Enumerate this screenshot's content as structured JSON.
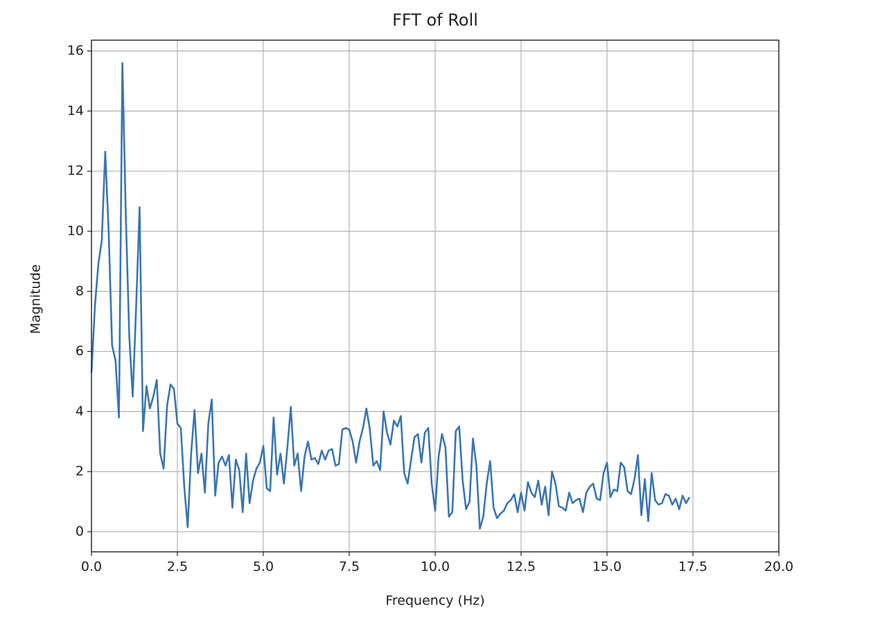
{
  "chart_data": {
    "type": "line",
    "title": "FFT of Roll",
    "xlabel": "Frequency (Hz)",
    "ylabel": "Magnitude",
    "x": [
      0,
      0.1,
      0.2,
      0.3,
      0.4,
      0.5,
      0.6,
      0.7,
      0.8,
      0.9,
      1.0,
      1.1,
      1.2,
      1.3,
      1.4,
      1.5,
      1.6,
      1.7,
      1.8,
      1.9,
      2.0,
      2.1,
      2.2,
      2.3,
      2.4,
      2.5,
      2.6,
      2.7,
      2.8,
      2.9,
      3.0,
      3.1,
      3.2,
      3.3,
      3.4,
      3.5,
      3.6,
      3.7,
      3.8,
      3.9,
      4.0,
      4.1,
      4.2,
      4.3,
      4.4,
      4.5,
      4.6,
      4.7,
      4.8,
      4.9,
      5.0,
      5.1,
      5.2,
      5.3,
      5.4,
      5.5,
      5.6,
      5.7,
      5.8,
      5.9,
      6.0,
      6.1,
      6.2,
      6.3,
      6.4,
      6.5,
      6.6,
      6.7,
      6.8,
      6.9,
      7.0,
      7.1,
      7.2,
      7.3,
      7.4,
      7.5,
      7.6,
      7.7,
      7.8,
      7.9,
      8.0,
      8.1,
      8.2,
      8.3,
      8.4,
      8.5,
      8.6,
      8.7,
      8.8,
      8.9,
      9.0,
      9.1,
      9.2,
      9.3,
      9.4,
      9.5,
      9.6,
      9.7,
      9.8,
      9.9,
      10.0,
      10.1,
      10.2,
      10.3,
      10.4,
      10.5,
      10.6,
      10.7,
      10.8,
      10.9,
      11.0,
      11.1,
      11.2,
      11.3,
      11.4,
      11.5,
      11.6,
      11.7,
      11.8,
      11.9,
      12.0,
      12.1,
      12.2,
      12.3,
      12.4,
      12.5,
      12.6,
      12.7,
      12.8,
      12.9,
      13.0,
      13.1,
      13.2,
      13.3,
      13.4,
      13.5,
      13.6,
      13.7,
      13.8,
      13.9,
      14.0,
      14.1,
      14.2,
      14.3,
      14.4,
      14.5,
      14.6,
      14.7,
      14.8,
      14.9,
      15.0,
      15.1,
      15.2,
      15.3,
      15.4,
      15.5,
      15.6,
      15.7,
      15.8,
      15.9,
      16.0,
      16.1,
      16.2,
      16.3,
      16.4,
      16.5,
      16.6,
      16.7,
      16.8,
      16.9,
      17.0,
      17.1,
      17.2,
      17.3,
      17.4
    ],
    "series": [
      {
        "color": "#3a75b0",
        "values": [
          5.3,
          7.5,
          8.9,
          9.7,
          12.65,
          10.0,
          6.2,
          5.7,
          3.8,
          15.6,
          10.5,
          6.5,
          4.5,
          7.5,
          10.8,
          3.35,
          4.85,
          4.1,
          4.5,
          5.05,
          2.6,
          2.1,
          4.2,
          4.9,
          4.75,
          3.6,
          3.45,
          1.5,
          0.15,
          2.6,
          4.05,
          1.95,
          2.6,
          1.3,
          3.6,
          4.4,
          1.2,
          2.3,
          2.5,
          2.2,
          2.55,
          0.8,
          2.4,
          2.05,
          0.65,
          2.6,
          0.95,
          1.7,
          2.1,
          2.3,
          2.85,
          1.45,
          1.35,
          3.8,
          1.9,
          2.6,
          1.6,
          2.8,
          4.15,
          2.2,
          2.6,
          1.35,
          2.5,
          3.0,
          2.4,
          2.45,
          2.25,
          2.7,
          2.4,
          2.7,
          2.75,
          2.2,
          2.25,
          3.4,
          3.45,
          3.4,
          3.0,
          2.3,
          3.0,
          3.45,
          4.1,
          3.4,
          2.2,
          2.35,
          2.05,
          4.0,
          3.3,
          2.9,
          3.7,
          3.5,
          3.85,
          1.95,
          1.6,
          2.4,
          3.15,
          3.25,
          2.3,
          3.3,
          3.45,
          1.6,
          0.7,
          2.5,
          3.25,
          2.8,
          0.5,
          0.65,
          3.35,
          3.5,
          1.7,
          0.75,
          1.0,
          3.1,
          2.2,
          0.1,
          0.5,
          1.6,
          2.35,
          0.8,
          0.45,
          0.6,
          0.7,
          0.95,
          1.05,
          1.25,
          0.65,
          1.3,
          0.7,
          1.65,
          1.3,
          1.15,
          1.7,
          0.9,
          1.5,
          0.55,
          2.0,
          1.6,
          0.85,
          0.8,
          0.7,
          1.3,
          0.95,
          1.05,
          1.1,
          0.65,
          1.3,
          1.5,
          1.6,
          1.1,
          1.05,
          1.95,
          2.3,
          1.15,
          1.4,
          1.35,
          2.3,
          2.15,
          1.35,
          1.25,
          1.75,
          2.55,
          0.55,
          1.75,
          0.35,
          1.95,
          1.05,
          0.9,
          0.95,
          1.25,
          1.2,
          0.9,
          1.1,
          0.75,
          1.2,
          0.95,
          1.15
        ]
      }
    ],
    "xlim": [
      0,
      20
    ],
    "xticks": [
      {
        "value": 0,
        "label": "0.0"
      },
      2.5,
      {
        "value": 5,
        "label": "5.0"
      },
      7.5,
      {
        "value": 10,
        "label": "10.0"
      },
      12.5,
      {
        "value": 15,
        "label": "15.0"
      },
      17.5,
      {
        "value": 20,
        "label": "20.0"
      }
    ],
    "ylim": [
      -0.67,
      16.36
    ],
    "yticks": [
      0,
      2,
      4,
      6,
      8,
      10,
      12,
      14,
      16
    ],
    "grid": true
  }
}
